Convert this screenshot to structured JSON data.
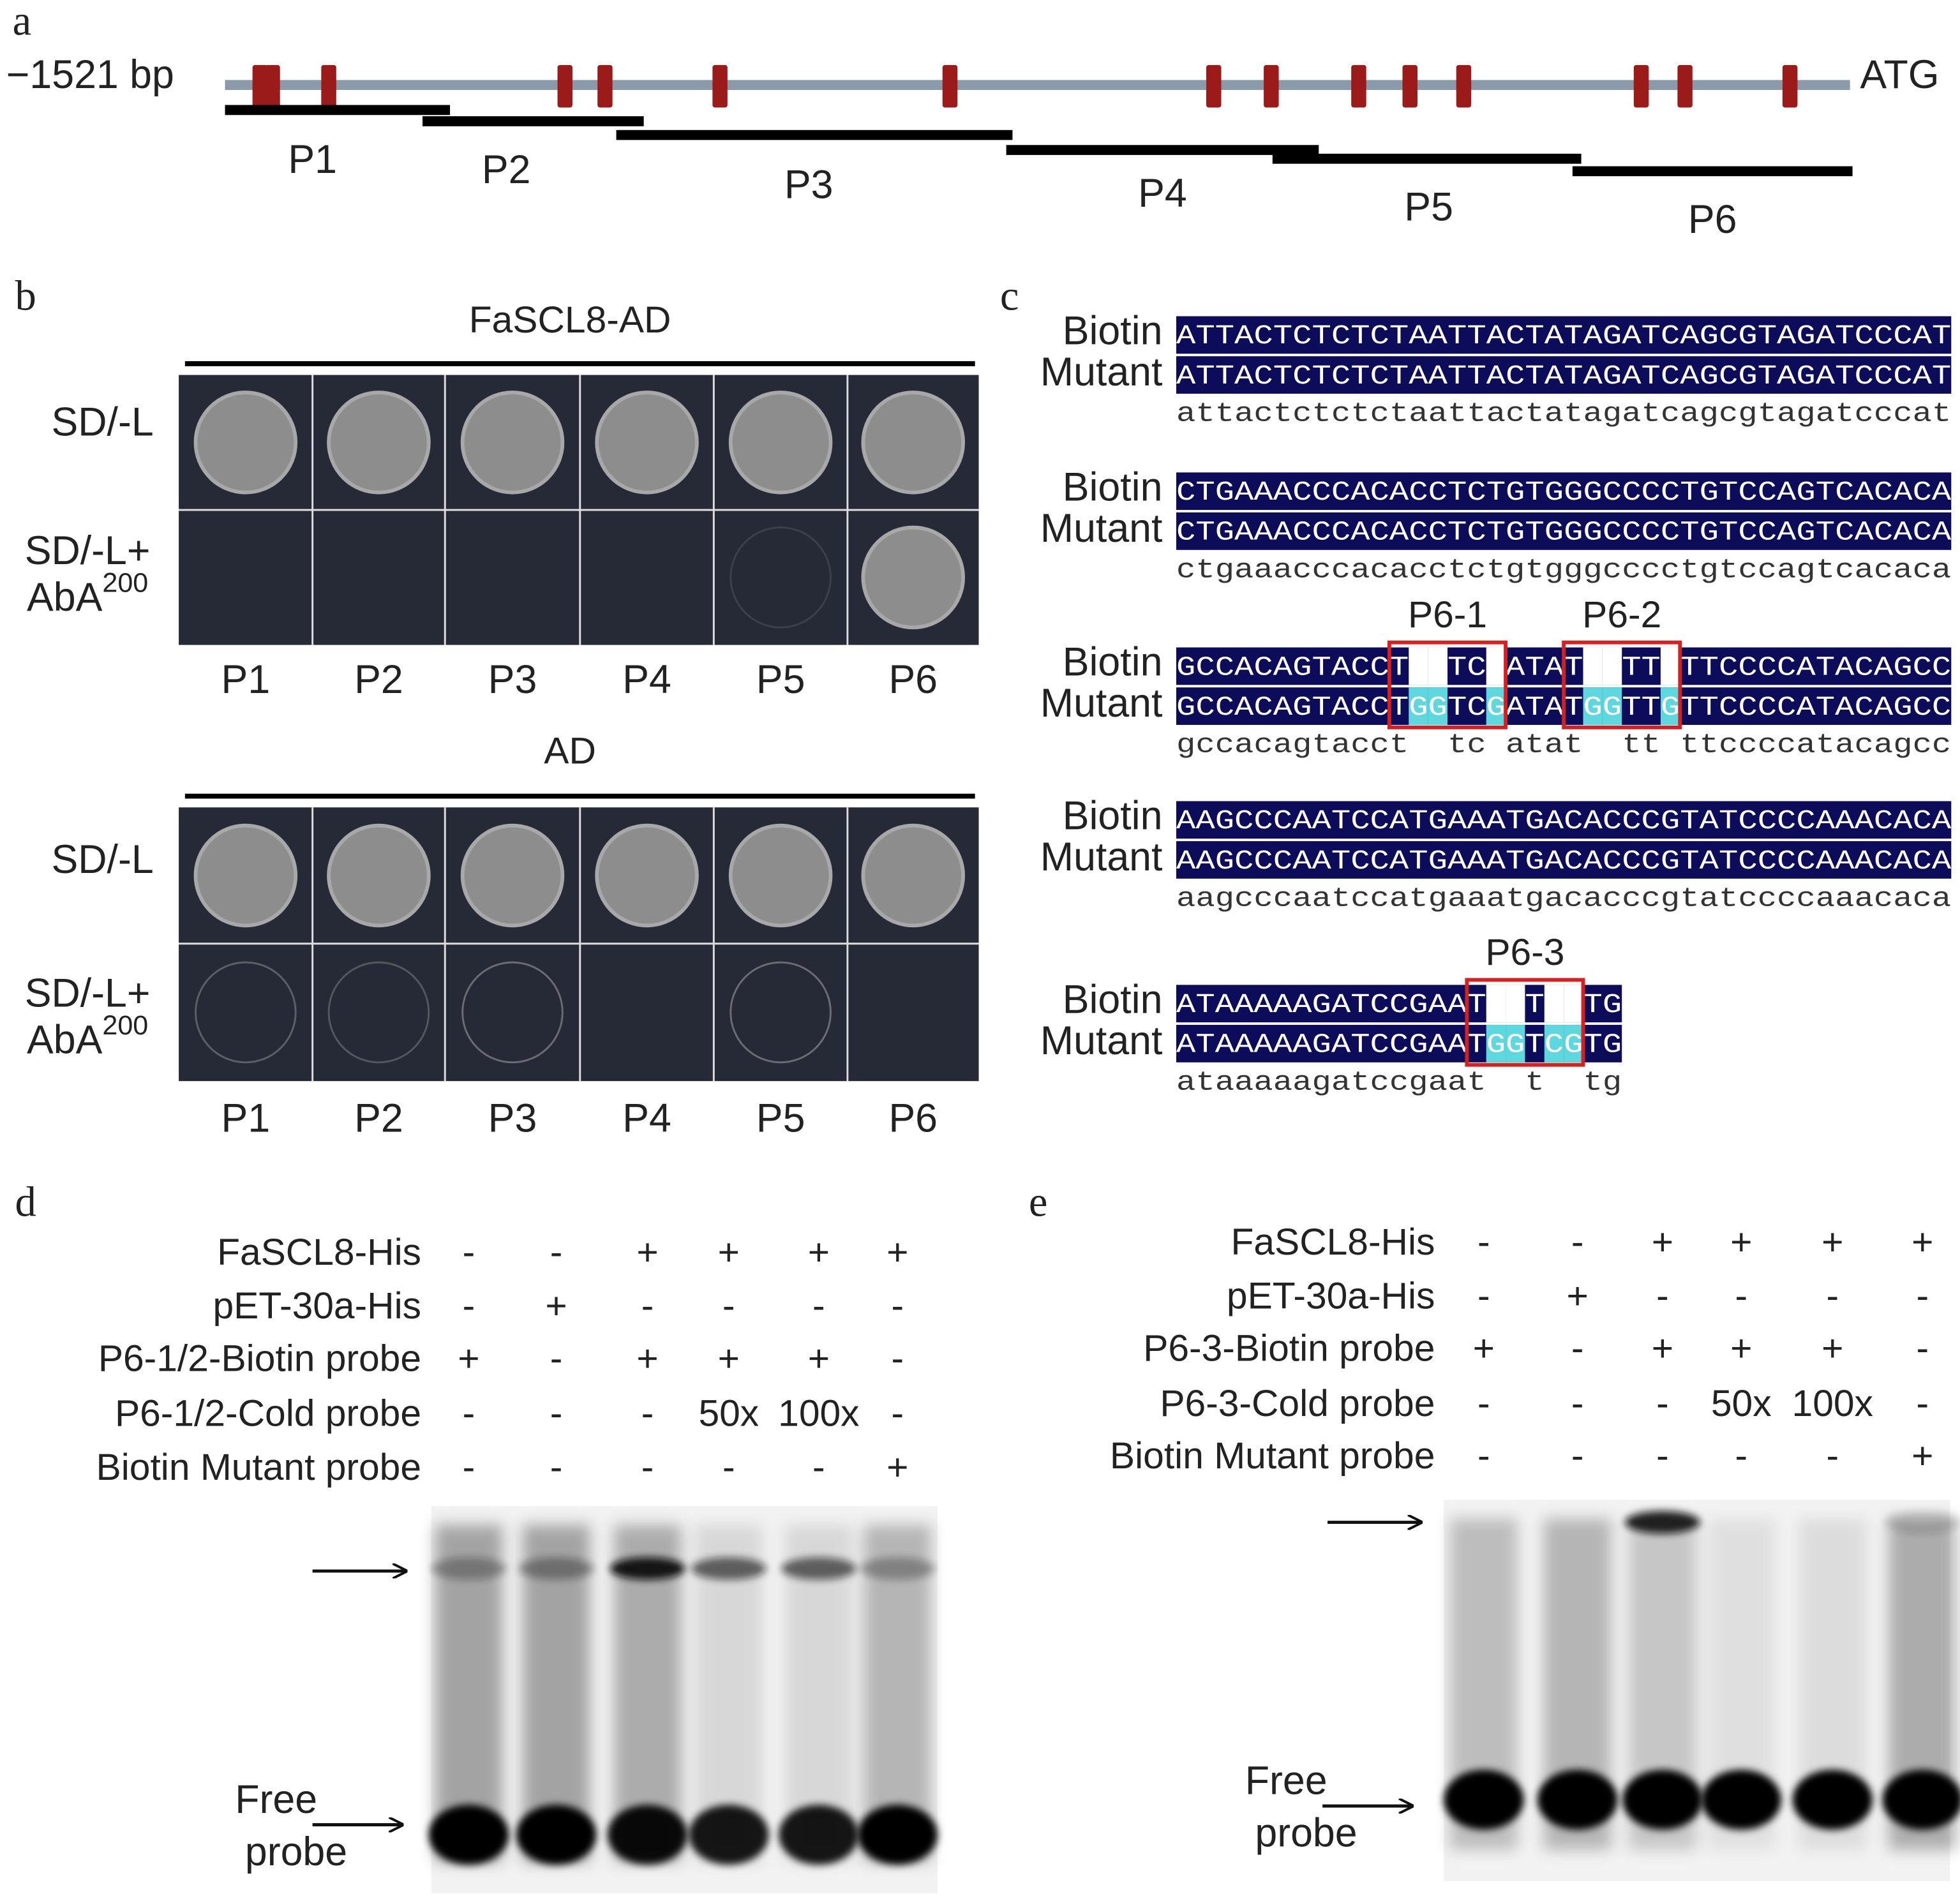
{
  "panel_a": {
    "label": "a",
    "start": "−1521 bp",
    "end": "ATG",
    "fragments": [
      "P1",
      "P2",
      "P3",
      "P4",
      "P5",
      "P6"
    ]
  },
  "panel_b": {
    "label": "b",
    "groups": [
      {
        "title": "FaSCL8-AD",
        "rows": [
          {
            "text": "SD/-L"
          },
          {
            "text": "SD/-L+",
            "base": "AbA",
            "sup": "200"
          }
        ],
        "columns": [
          "P1",
          "P2",
          "P3",
          "P4",
          "P5",
          "P6"
        ]
      },
      {
        "title": "AD",
        "rows": [
          {
            "text": "SD/-L"
          },
          {
            "text": "SD/-L+",
            "base": "AbA",
            "sup": "200"
          }
        ],
        "columns": [
          "P1",
          "P2",
          "P3",
          "P4",
          "P5",
          "P6"
        ]
      }
    ]
  },
  "panel_c": {
    "label": "c",
    "row_names": [
      "Biotin",
      "Mutant"
    ],
    "blocks": [
      {
        "biotin": "ATTACTCTCTCTAATTACTATAGATCAGCGTAGATCCCAT",
        "mutant": "ATTACTCTCTCTAATTACTATAGATCAGCGTAGATCCCAT",
        "consensus": "attactctctctaattactatagatcagcgtagatcccat"
      },
      {
        "biotin": "CTGAAACCCACACCTCTGTGGGCCCCTGTCCAGTCACACA",
        "mutant": "CTGAAACCCACACCTCTGTGGGCCCCTGTCCAGTCACACA",
        "consensus": "ctgaaacccacacctctgtgggcccctgtccagtcacaca"
      },
      {
        "biotin": "GCCACAGTACCTTTTCCATATTTTTCTTCCCCATACAGCC",
        "mutant": "GCCACAGTACCTGGTCGATATGGTTGTTCCCCATACAGCC",
        "consensus": "gccacagtacct  tc atat  tt ttccccatacagcc",
        "boxes": [
          "P6-1",
          "P6-2"
        ]
      },
      {
        "biotin": "AAGCCCAATCCATGAAATGACACCCGTATCCCCAAACACA",
        "mutant": "AAGCCCAATCCATGAAATGACACCCGTATCCCCAAACACA",
        "consensus": "aagcccaatccatgaaatgacacccgtatccccaaacaca"
      },
      {
        "biotin": "ATAAAAAGATCCGAATTTTTCTG",
        "mutant": "ATAAAAAGATCCGAATGGTCGTG",
        "consensus": "ataaaaagatccgaat  t  tg",
        "boxes": [
          "P6-3"
        ]
      }
    ]
  },
  "panel_d": {
    "label": "d",
    "rows": [
      {
        "name": "FaSCL8-His",
        "cells": [
          "-",
          "-",
          "+",
          "+",
          "+",
          "+"
        ]
      },
      {
        "name": "pET-30a-His",
        "cells": [
          "-",
          "+",
          "-",
          "-",
          "-",
          "-"
        ]
      },
      {
        "name": "P6-1/2-Biotin probe",
        "cells": [
          "+",
          "-",
          "+",
          "+",
          "+",
          "-"
        ]
      },
      {
        "name": "P6-1/2-Cold probe",
        "cells": [
          "-",
          "-",
          "-",
          "50x",
          "100x",
          "-"
        ]
      },
      {
        "name": "Biotin Mutant probe",
        "cells": [
          "-",
          "-",
          "-",
          "-",
          "-",
          "+"
        ]
      }
    ],
    "free_probe": [
      "Free",
      "probe"
    ]
  },
  "panel_e": {
    "label": "e",
    "rows": [
      {
        "name": "FaSCL8-His",
        "cells": [
          "-",
          "-",
          "+",
          "+",
          "+",
          "+"
        ]
      },
      {
        "name": "pET-30a-His",
        "cells": [
          "-",
          "+",
          "-",
          "-",
          "-",
          "-"
        ]
      },
      {
        "name": "P6-3-Biotin probe",
        "cells": [
          "+",
          "-",
          "+",
          "+",
          "+",
          "-"
        ]
      },
      {
        "name": "P6-3-Cold probe",
        "cells": [
          "-",
          "-",
          "-",
          "50x",
          "100x",
          "-"
        ]
      },
      {
        "name": "Biotin Mutant probe",
        "cells": [
          "-",
          "-",
          "-",
          "-",
          "-",
          "+"
        ]
      }
    ],
    "free_probe": [
      "Free",
      "probe"
    ]
  }
}
